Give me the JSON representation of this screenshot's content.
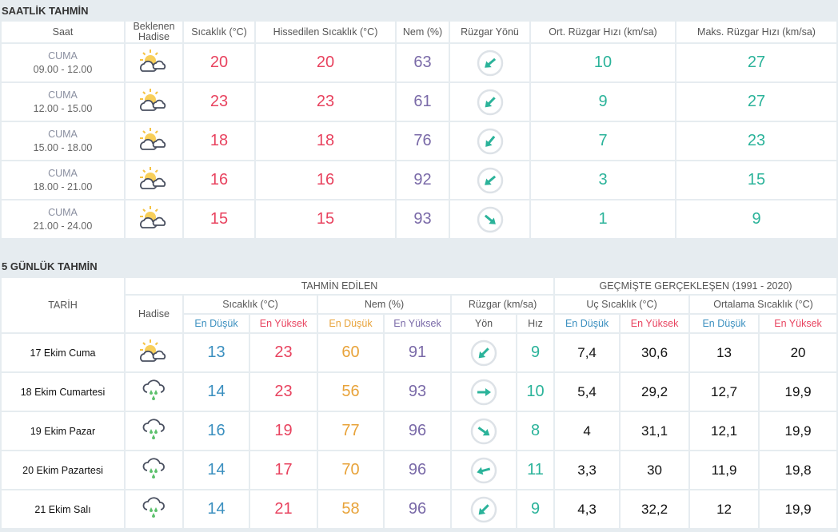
{
  "hourly": {
    "title": "SAATLİK TAHMİN",
    "headers": [
      "Saat",
      "Beklenen Hadise",
      "Sıcaklık (°C)",
      "Hissedilen Sıcaklık (°C)",
      "Nem (%)",
      "Rüzgar Yönü",
      "Ort. Rüzgar Hızı (km/sa)",
      "Maks. Rüzgar Hızı (km/sa)"
    ],
    "rows": [
      {
        "day": "CUMA",
        "time": "09.00 - 12.00",
        "icon": "partly-cloudy-icon",
        "temp": "20",
        "feels": "20",
        "humidity": "63",
        "wind_dir_deg": 140,
        "wind_avg": "10",
        "wind_max": "27"
      },
      {
        "day": "CUMA",
        "time": "12.00 - 15.00",
        "icon": "partly-cloudy-icon",
        "temp": "23",
        "feels": "23",
        "humidity": "61",
        "wind_dir_deg": 135,
        "wind_avg": "9",
        "wind_max": "27"
      },
      {
        "day": "CUMA",
        "time": "15.00 - 18.00",
        "icon": "partly-cloudy-icon",
        "temp": "18",
        "feels": "18",
        "humidity": "76",
        "wind_dir_deg": 130,
        "wind_avg": "7",
        "wind_max": "23"
      },
      {
        "day": "CUMA",
        "time": "18.00 - 21.00",
        "icon": "partly-cloudy-icon",
        "temp": "16",
        "feels": "16",
        "humidity": "92",
        "wind_dir_deg": 140,
        "wind_avg": "3",
        "wind_max": "15"
      },
      {
        "day": "CUMA",
        "time": "21.00 - 24.00",
        "icon": "partly-cloudy-icon",
        "temp": "15",
        "feels": "15",
        "humidity": "93",
        "wind_dir_deg": 40,
        "wind_avg": "1",
        "wind_max": "9"
      }
    ]
  },
  "daily": {
    "title": "5 GÜNLÜK TAHMİN",
    "h_date": "TARİH",
    "h_forecast": "TAHMİN EDİLEN",
    "h_past": "GEÇMİŞTE GERÇEKLEŞEN (1991 - 2020)",
    "h_event": "Hadise",
    "h_temp": "Sıcaklık (°C)",
    "h_hum": "Nem (%)",
    "h_wind": "Rüzgar (km/sa)",
    "h_extreme": "Uç Sıcaklık (°C)",
    "h_avg": "Ortalama Sıcaklık (°C)",
    "h_low": "En Düşük",
    "h_high": "En Yüksek",
    "h_dir": "Yön",
    "h_speed": "Hız",
    "rows": [
      {
        "date": "17 Ekim Cuma",
        "icon": "partly-cloudy-icon",
        "tmin": "13",
        "tmax": "23",
        "hmin": "60",
        "hmax": "91",
        "wind_dir_deg": 135,
        "speed": "9",
        "xmin": "7,4",
        "xmax": "30,6",
        "amin": "13",
        "amax": "20"
      },
      {
        "date": "18 Ekim Cumartesi",
        "icon": "rain-icon",
        "tmin": "14",
        "tmax": "23",
        "hmin": "56",
        "hmax": "93",
        "wind_dir_deg": 0,
        "speed": "10",
        "xmin": "5,4",
        "xmax": "29,2",
        "amin": "12,7",
        "amax": "19,9"
      },
      {
        "date": "19 Ekim Pazar",
        "icon": "rain-icon",
        "tmin": "16",
        "tmax": "19",
        "hmin": "77",
        "hmax": "96",
        "wind_dir_deg": 35,
        "speed": "8",
        "xmin": "4",
        "xmax": "31,1",
        "amin": "12,1",
        "amax": "19,9"
      },
      {
        "date": "20 Ekim Pazartesi",
        "icon": "rain-icon",
        "tmin": "14",
        "tmax": "17",
        "hmin": "70",
        "hmax": "96",
        "wind_dir_deg": 165,
        "speed": "11",
        "xmin": "3,3",
        "xmax": "30",
        "amin": "11,9",
        "amax": "19,8"
      },
      {
        "date": "21 Ekim Salı",
        "icon": "rain-icon",
        "tmin": "14",
        "tmax": "21",
        "hmin": "58",
        "hmax": "96",
        "wind_dir_deg": 135,
        "speed": "9",
        "xmin": "4,3",
        "xmax": "32,2",
        "amin": "12",
        "amax": "19,9"
      }
    ]
  }
}
